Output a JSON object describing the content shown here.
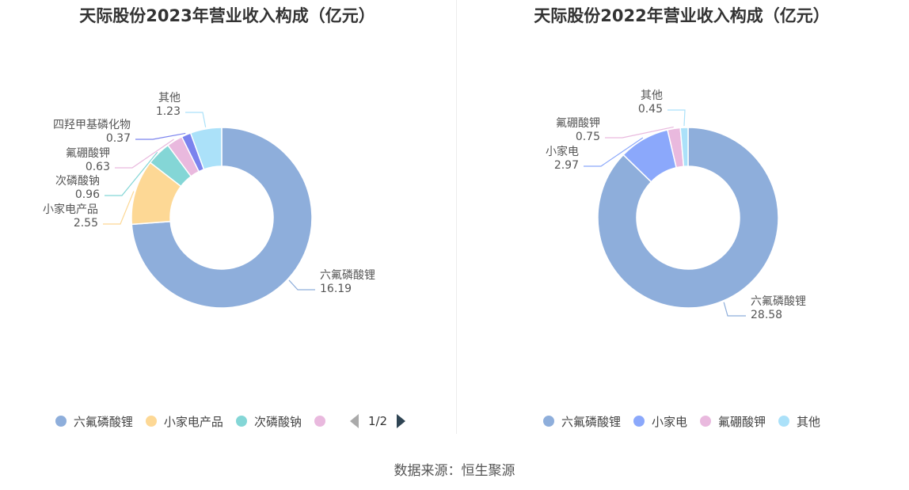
{
  "chart_data": [
    {
      "type": "pie",
      "title": "天际股份2023年营业收入构成（亿元）",
      "categories": [
        "六氟磷酸锂",
        "小家电产品",
        "次磷酸钠",
        "氟硼酸钾",
        "四羟甲基磷化物",
        "其他"
      ],
      "values": [
        16.19,
        2.55,
        0.96,
        0.63,
        0.37,
        1.23
      ],
      "value_labels": [
        "16.19",
        "2.55",
        "0.96",
        "0.63",
        "0.37",
        "1.23"
      ],
      "colors": [
        "#8eaedb",
        "#fdd895",
        "#84d6d6",
        "#e9b9de",
        "#7b83ee",
        "#abe1f9"
      ],
      "legend": {
        "position": "bottom",
        "items": [
          "六氟磷酸锂",
          "小家电产品",
          "次磷酸钠",
          ""
        ],
        "pager": "1/2"
      }
    },
    {
      "type": "pie",
      "title": "天际股份2022年营业收入构成（亿元）",
      "categories": [
        "六氟磷酸锂",
        "小家电",
        "氟硼酸钾",
        "其他"
      ],
      "values": [
        28.58,
        2.97,
        0.75,
        0.45
      ],
      "value_labels": [
        "28.58",
        "2.97",
        "0.75",
        "0.45"
      ],
      "colors": [
        "#8eaedb",
        "#8ba8fb",
        "#e9b9de",
        "#abe1f9"
      ],
      "legend": {
        "position": "bottom",
        "items": [
          "六氟磷酸锂",
          "小家电",
          "氟硼酸钾",
          "其他"
        ]
      }
    }
  ],
  "source": "数据来源：恒生聚源"
}
